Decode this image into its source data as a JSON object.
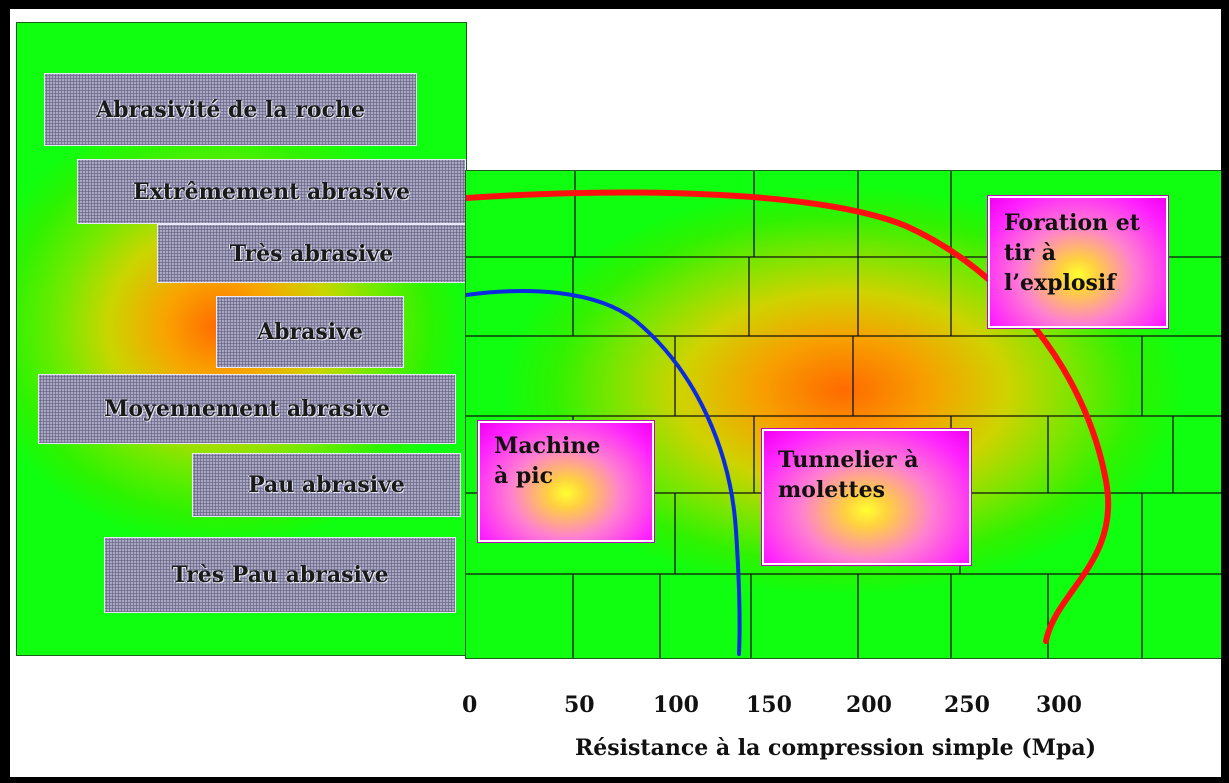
{
  "abrasivity": {
    "title": "Abrasivité de la roche",
    "levels": [
      "Extrêmement abrasive",
      "Très abrasive",
      "Abrasive",
      "Moyennement abrasive",
      "Pau abrasive",
      "Très Pau abrasive"
    ]
  },
  "methods": {
    "machine": [
      "Machine",
      "à pic"
    ],
    "tunnelier": [
      "Tunnelier à",
      "molettes"
    ],
    "foration": [
      "Foration et",
      "tir à",
      "l’explosif"
    ]
  },
  "axis": {
    "ticks": [
      "0",
      "50",
      "100",
      "150",
      "200",
      "250",
      "300"
    ],
    "label": "Résistance à la compression simple (Mpa)"
  },
  "colors": {
    "machine_curve": "#0a2be0",
    "explosive_curve": "#ff1010"
  }
}
